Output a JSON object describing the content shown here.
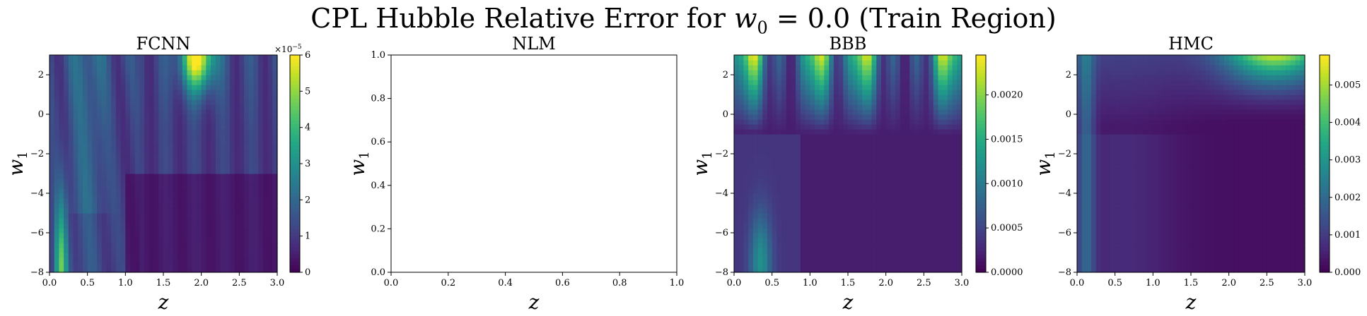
{
  "figure": {
    "title_prefix": "CPL Hubble Relative Error for ",
    "title_math": "w",
    "title_sub": "0",
    "title_suffix": " = 0.0 (Train Region)"
  },
  "chart_data": [
    {
      "type": "heatmap",
      "title": "FCNN",
      "xlabel": "z",
      "ylabel": "w",
      "ylabel_sub": "1",
      "xlim": [
        0.0,
        3.0
      ],
      "ylim": [
        -8,
        3
      ],
      "xticks": [
        "0.0",
        "0.5",
        "1.0",
        "1.5",
        "2.0",
        "2.5",
        "3.0"
      ],
      "yticks": [
        "−8",
        "−6",
        "−4",
        "−2",
        "0",
        "2"
      ],
      "colormap": "viridis",
      "colorbar": {
        "range": [
          0,
          6
        ],
        "ticks": [
          "0",
          "1",
          "2",
          "3",
          "4",
          "5",
          "6"
        ],
        "multiplier": "×10",
        "multiplier_exp": "−5"
      },
      "notes": "vertical stripe pattern; strongest error near z≈1.9–2.0 at top (w1≈2–3)"
    },
    {
      "type": "heatmap",
      "title": "NLM",
      "xlabel": "z",
      "ylabel": "w",
      "ylabel_sub": "1",
      "xlim": [
        0.0,
        1.0
      ],
      "ylim": [
        0.0,
        1.0
      ],
      "xticks": [
        "0.0",
        "0.2",
        "0.4",
        "0.6",
        "0.8",
        "1.0"
      ],
      "yticks": [
        "0.0",
        "0.2",
        "0.4",
        "0.6",
        "0.8",
        "1.0"
      ],
      "empty": true
    },
    {
      "type": "heatmap",
      "title": "BBB",
      "xlabel": "z",
      "ylabel": "w",
      "ylabel_sub": "1",
      "xlim": [
        0.0,
        3.0
      ],
      "ylim": [
        -8,
        3
      ],
      "xticks": [
        "0.0",
        "0.5",
        "1.0",
        "1.5",
        "2.0",
        "2.5",
        "3.0"
      ],
      "yticks": [
        "−8",
        "−6",
        "−4",
        "−2",
        "0",
        "2"
      ],
      "colormap": "viridis",
      "colorbar": {
        "range": [
          0.0,
          0.00245
        ],
        "ticks": [
          "0.0000",
          "0.0005",
          "0.0010",
          "0.0015",
          "0.0020"
        ]
      },
      "notes": "arched bright regions near top at z≈0.2, 1.1, 1.7, 2.8"
    },
    {
      "type": "heatmap",
      "title": "HMC",
      "xlabel": "z",
      "ylabel": "w",
      "ylabel_sub": "1",
      "xlim": [
        0.0,
        3.0
      ],
      "ylim": [
        -8,
        3
      ],
      "xticks": [
        "0.0",
        "0.5",
        "1.0",
        "1.5",
        "2.0",
        "2.5",
        "3.0"
      ],
      "yticks": [
        "−8",
        "−6",
        "−4",
        "−2",
        "0",
        "2"
      ],
      "colormap": "viridis",
      "colorbar": {
        "range": [
          0.0,
          0.0058
        ],
        "ticks": [
          "0.000",
          "0.001",
          "0.002",
          "0.003",
          "0.004",
          "0.005"
        ]
      },
      "notes": "smooth, largest error near z≈2.6 at top"
    }
  ]
}
